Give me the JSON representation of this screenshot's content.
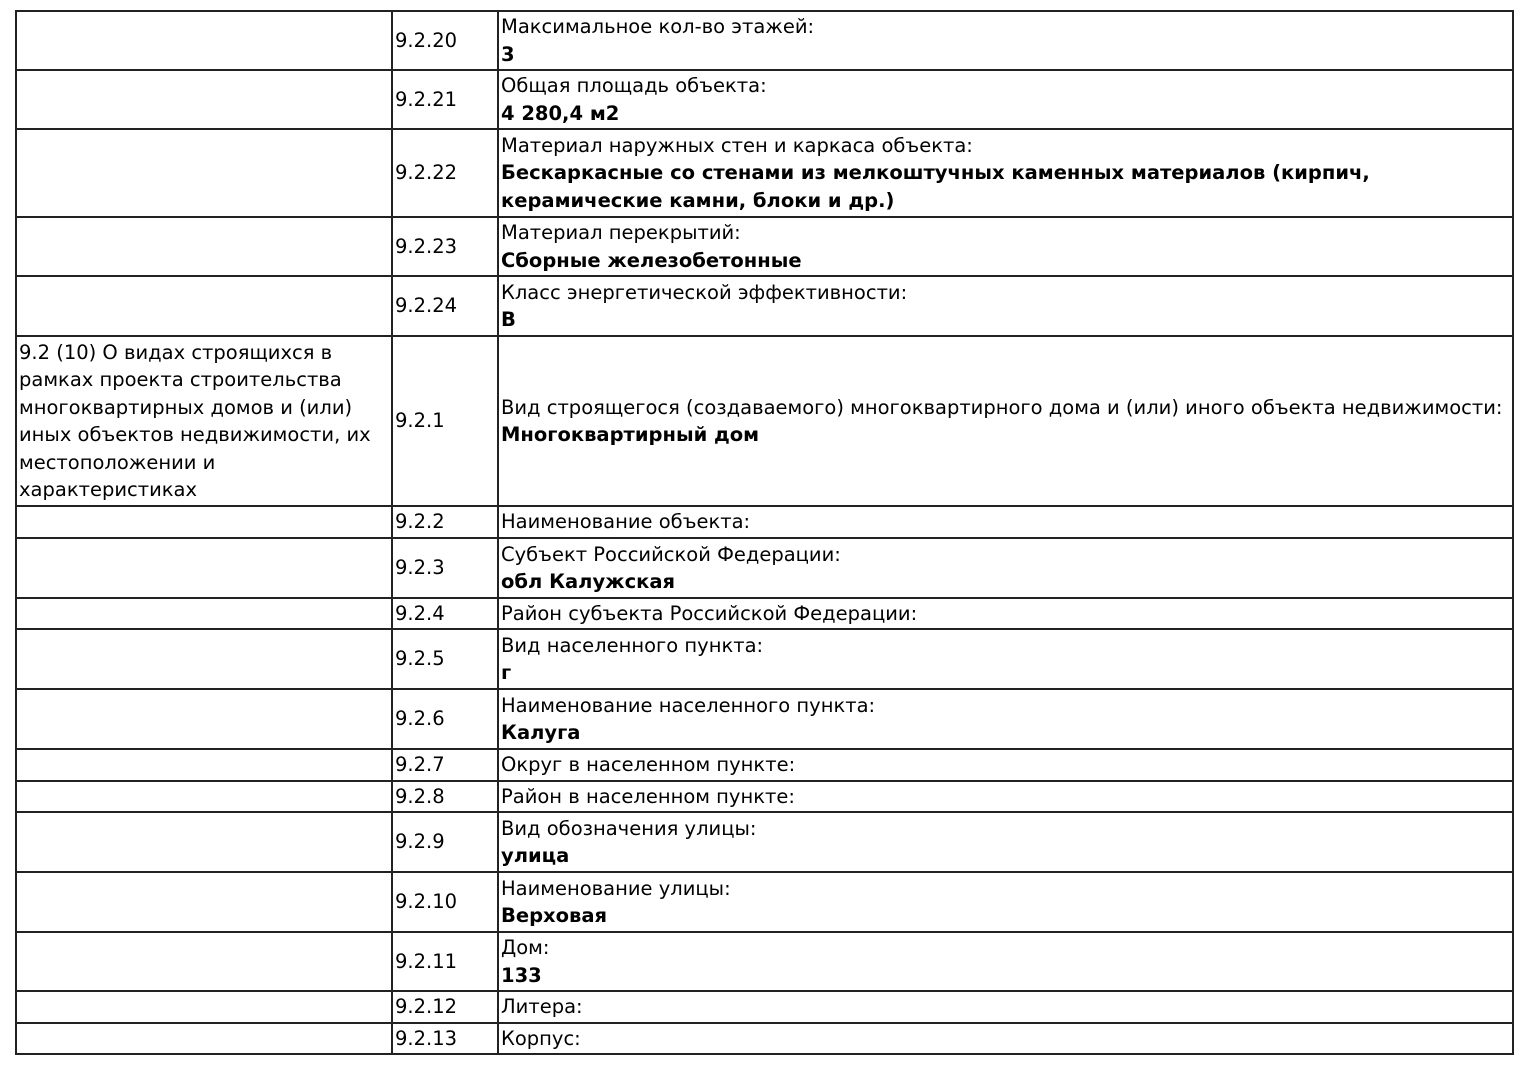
{
  "rows": [
    {
      "section": "",
      "code": "9.2.20",
      "label": "Максимальное кол-во этажей:",
      "value": "3"
    },
    {
      "section": "",
      "code": "9.2.21",
      "label": "Общая площадь объекта:",
      "value": "4 280,4 м2"
    },
    {
      "section": "",
      "code": "9.2.22",
      "label": "Материал наружных стен и каркаса объекта:",
      "value": "Бескаркасные со стенами из мелкоштучных каменных материалов (кирпич, керамические камни, блоки и др.)"
    },
    {
      "section": "",
      "code": "9.2.23",
      "label": "Материал перекрытий:",
      "value": "Сборные железобетонные"
    },
    {
      "section": "",
      "code": "9.2.24",
      "label": "Класс энергетической эффективности:",
      "value": "В"
    },
    {
      "section": "9.2 (10) О видах строящихся в рамках проекта строительства многоквартирных домов и (или) иных объектов недвижимости, их местоположении и характеристиках",
      "code": "9.2.1",
      "label": "Вид строящегося (создаваемого) многоквартирного дома и (или) иного объекта недвижимости:",
      "value": "Многоквартирный дом"
    },
    {
      "section": "",
      "code": "9.2.2",
      "label": "Наименование объекта:",
      "value": ""
    },
    {
      "section": "",
      "code": "9.2.3",
      "label": "Субъект Российской Федерации:",
      "value": "обл Калужская"
    },
    {
      "section": "",
      "code": "9.2.4",
      "label": "Район субъекта Российской Федерации:",
      "value": ""
    },
    {
      "section": "",
      "code": "9.2.5",
      "label": "Вид населенного пункта:",
      "value": "г"
    },
    {
      "section": "",
      "code": "9.2.6",
      "label": "Наименование населенного пункта:",
      "value": "Калуга"
    },
    {
      "section": "",
      "code": "9.2.7",
      "label": "Округ в населенном пункте:",
      "value": ""
    },
    {
      "section": "",
      "code": "9.2.8",
      "label": "Район в населенном пункте:",
      "value": ""
    },
    {
      "section": "",
      "code": "9.2.9",
      "label": "Вид обозначения улицы:",
      "value": "улица"
    },
    {
      "section": "",
      "code": "9.2.10",
      "label": "Наименование улицы:",
      "value": "Верховая"
    },
    {
      "section": "",
      "code": "9.2.11",
      "label": "Дом:",
      "value": "133"
    },
    {
      "section": "",
      "code": "9.2.12",
      "label": "Литера:",
      "value": ""
    },
    {
      "section": "",
      "code": "9.2.13",
      "label": "Корпус:",
      "value": ""
    }
  ]
}
